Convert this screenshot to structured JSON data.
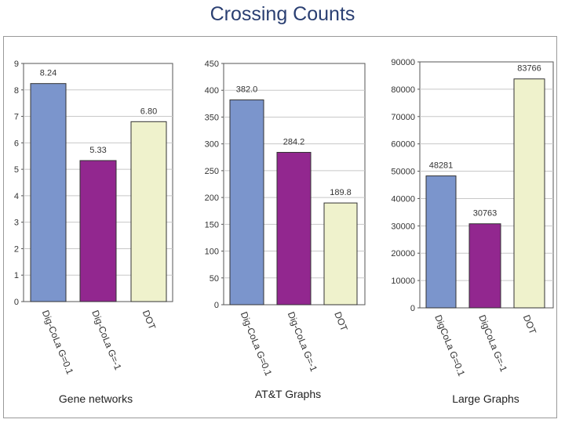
{
  "slide": {
    "title": "Crossing Counts"
  },
  "colors": {
    "series1": "#7b95cc",
    "series2": "#92278f",
    "series3": "#eff2cc",
    "grid": "#c8c8c8",
    "axis": "#555555"
  },
  "chart_data": [
    {
      "type": "bar",
      "title": "Gene networks",
      "categories": [
        "Dig-CoLa G=0.1",
        "Dig-CoLa G=-1",
        "DOT"
      ],
      "values": [
        8.24,
        5.33,
        6.8
      ],
      "value_labels": [
        "8.24",
        "5.33",
        "6.80"
      ],
      "ylim": [
        0,
        9
      ],
      "yticks": [
        0,
        1,
        2,
        3,
        4,
        5,
        6,
        7,
        8,
        9
      ],
      "ytick_labels": [
        "0",
        "1",
        "2",
        "3",
        "4",
        "5",
        "6",
        "7",
        "8",
        "9"
      ],
      "grid": true
    },
    {
      "type": "bar",
      "title": "AT&T Graphs",
      "categories": [
        "Dig-CoLa G=0.1",
        "Dig-CoLa G=-1",
        "DOT"
      ],
      "values": [
        382.0,
        284.2,
        189.8
      ],
      "value_labels": [
        "382.0",
        "284.2",
        "189.8"
      ],
      "ylim": [
        0,
        450
      ],
      "yticks": [
        0,
        50,
        100,
        150,
        200,
        250,
        300,
        350,
        400,
        450
      ],
      "ytick_labels": [
        "0",
        "50",
        "100",
        "150",
        "200",
        "250",
        "300",
        "350",
        "400",
        "450"
      ],
      "grid": true
    },
    {
      "type": "bar",
      "title": "Large Graphs",
      "categories": [
        "DigCoLa G=0.1",
        "DigCoLa G=-1",
        "DOT"
      ],
      "values": [
        48281,
        30763,
        83766
      ],
      "value_labels": [
        "48281",
        "30763",
        "83766"
      ],
      "ylim": [
        0,
        90000
      ],
      "yticks": [
        0,
        10000,
        20000,
        30000,
        40000,
        50000,
        60000,
        70000,
        80000,
        90000
      ],
      "ytick_labels": [
        "0",
        "10000",
        "20000",
        "30000",
        "40000",
        "50000",
        "60000",
        "70000",
        "80000",
        "90000"
      ],
      "grid": true
    }
  ]
}
